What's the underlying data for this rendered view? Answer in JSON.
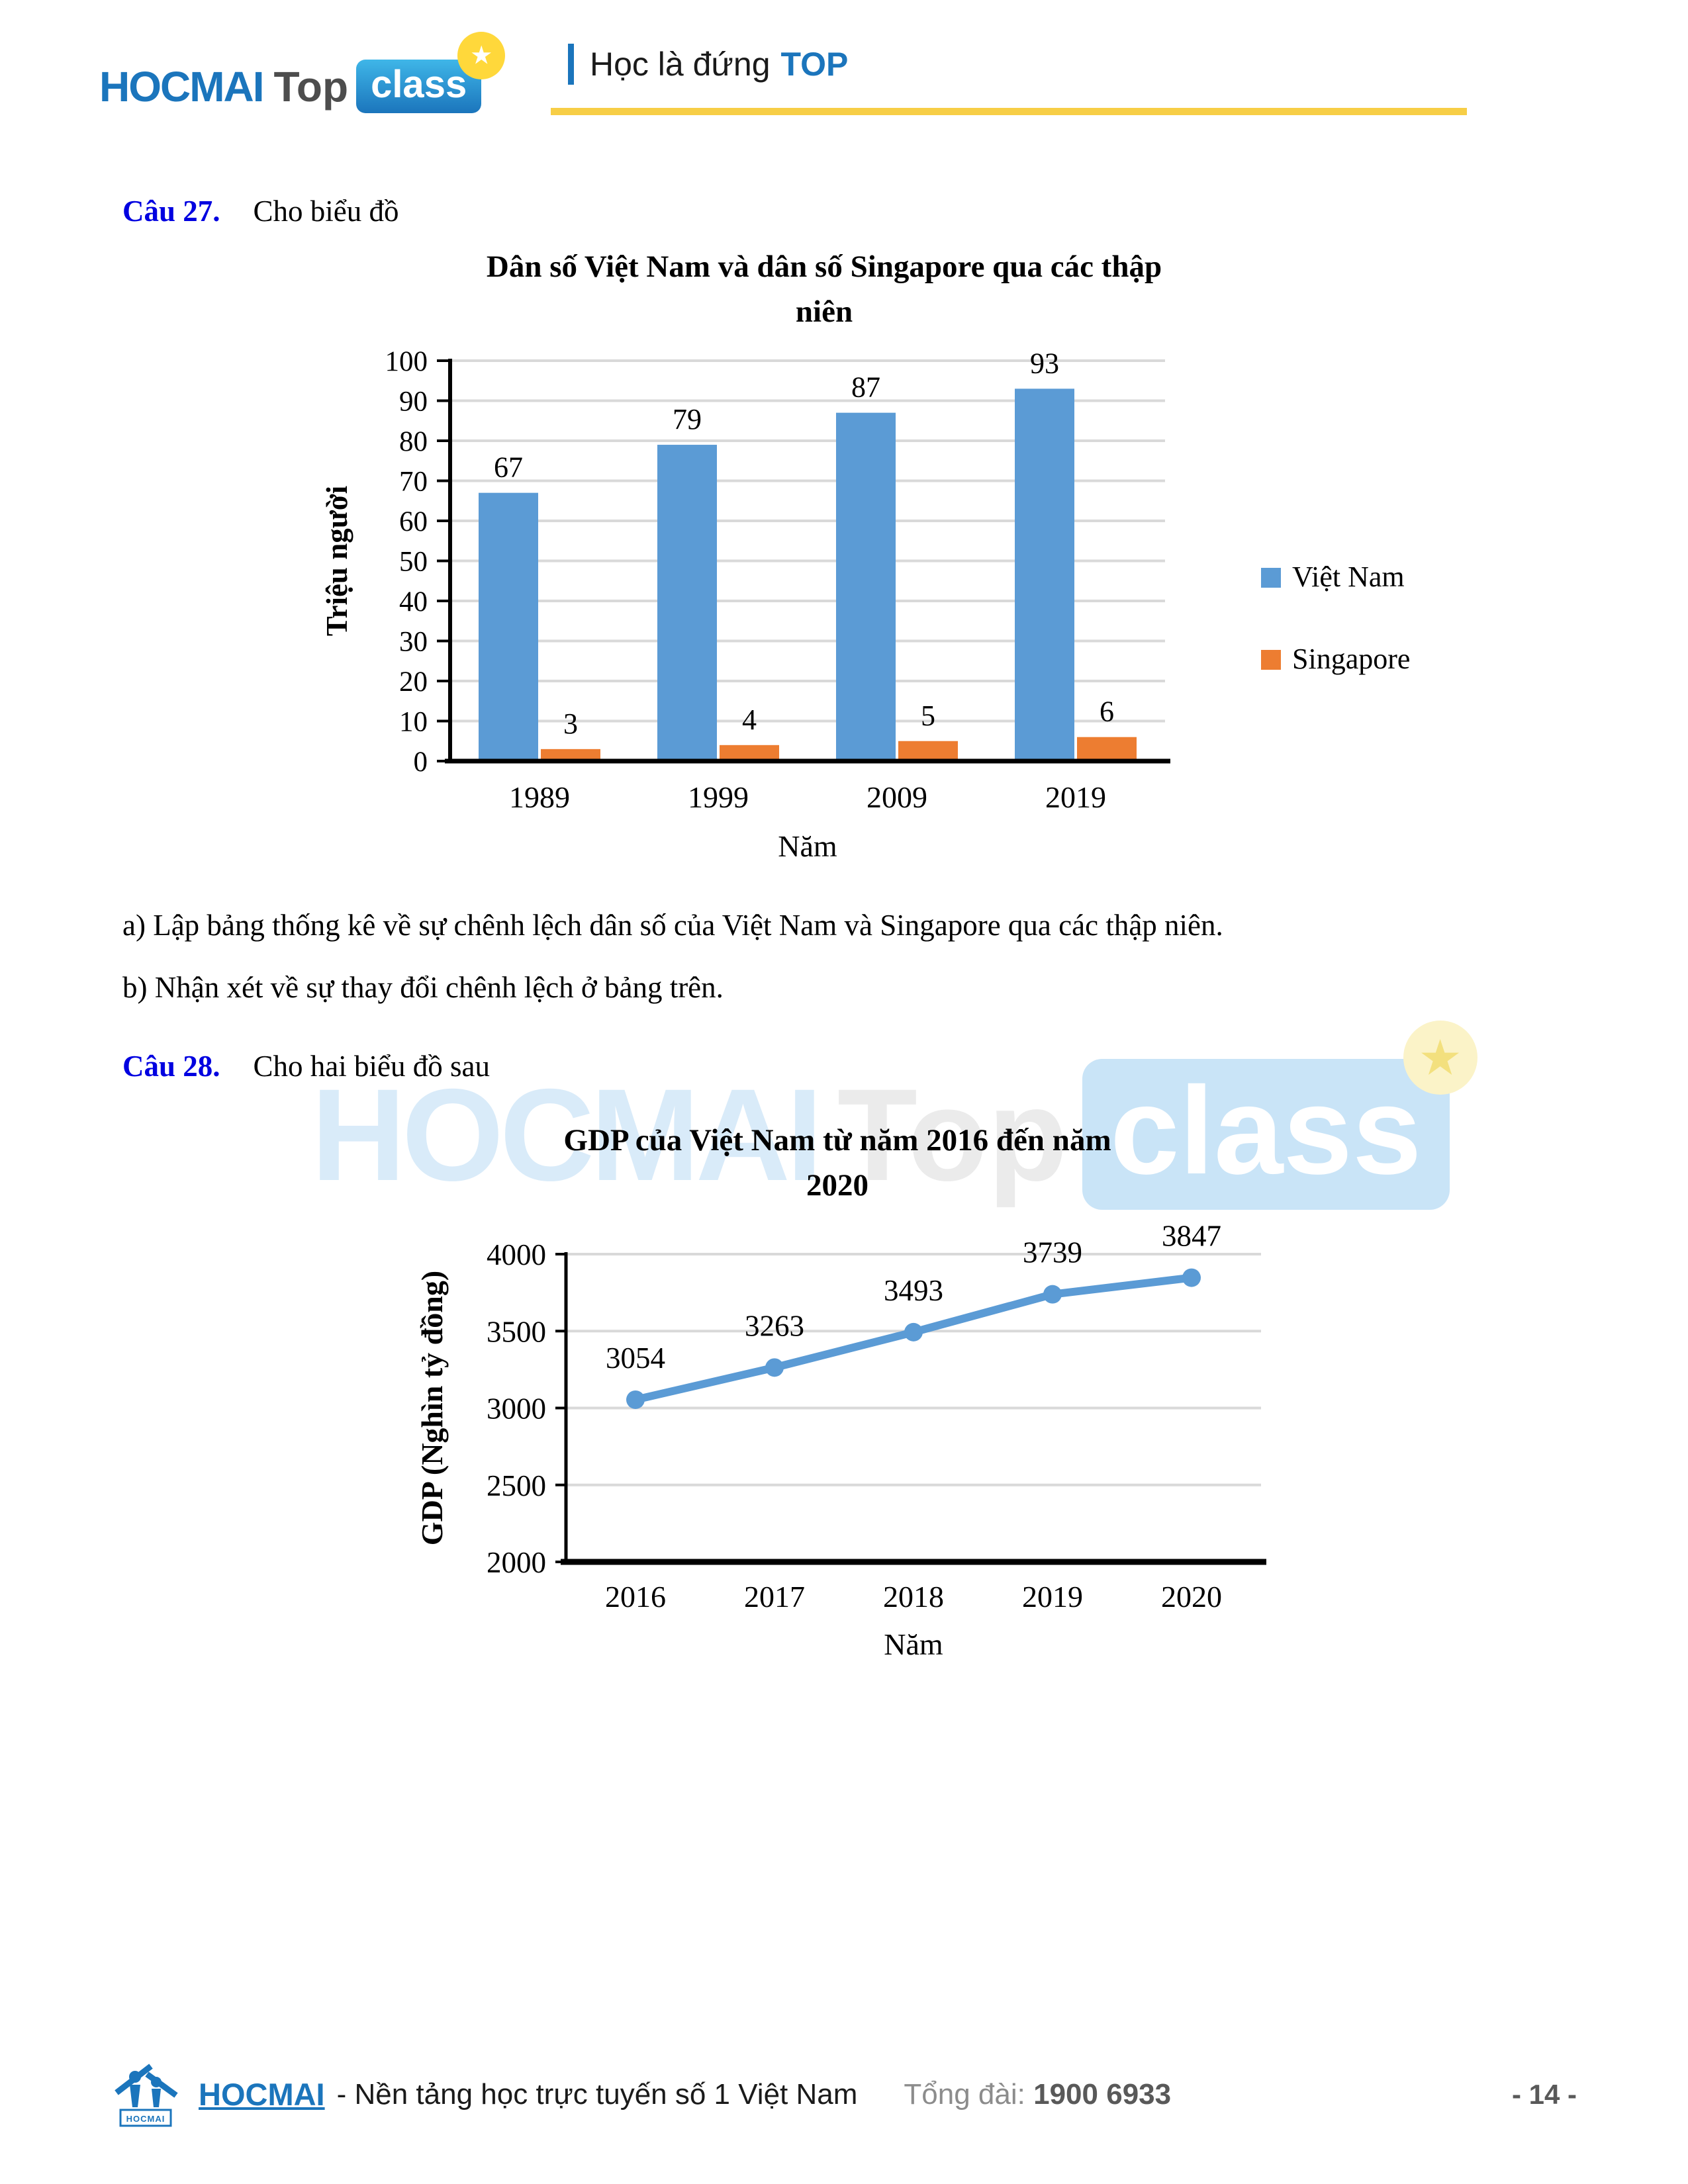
{
  "header": {
    "logo": {
      "hocmai": "HOCMAI",
      "top": "Top",
      "cls": "class",
      "badge": "★"
    },
    "tagline": {
      "text": "Học là đứng",
      "top": "TOP"
    }
  },
  "questions": {
    "q27_label": "Câu 27.",
    "q27_text": "Cho biểu đồ",
    "task_a": "a) Lập bảng thống kê về sự chênh lệch dân số của Việt Nam và Singapore qua các thập niên.",
    "task_b": "b) Nhận xét về sự thay đổi chênh lệch ở bảng trên.",
    "q28_label": "Câu 28.",
    "q28_text": "Cho hai biểu đồ sau"
  },
  "watermark": {
    "hocmai": "HOCMAI",
    "top": "Top",
    "cls": "class",
    "badge": "★"
  },
  "footer": {
    "logo_caption": "HOCMAI",
    "brand": "HOCMAI",
    "brand_sub": "- Nền tảng học trực tuyến số 1 Việt Nam",
    "hotline_label": "Tổng đài:",
    "hotline_number": "1900 6933",
    "page_number": "- 14 -"
  },
  "colors": {
    "brand_blue": "#1B75BC",
    "accent_yellow": "#F7CE46",
    "question_blue": "#0000E0",
    "bar_blue": "#5B9BD5",
    "bar_orange": "#ED7D31",
    "grid_gray": "#D9D9D9"
  },
  "chart_data": [
    {
      "type": "bar",
      "title": "Dân số Việt Nam và dân số Singapore qua các thập niên",
      "title_lines": [
        "Dân số Việt Nam và dân số Singapore qua các thập",
        "niên"
      ],
      "categories": [
        "1989",
        "1999",
        "2009",
        "2019"
      ],
      "series": [
        {
          "name": "Việt Nam",
          "color": "#5B9BD5",
          "values": [
            67,
            79,
            87,
            93
          ]
        },
        {
          "name": "Singapore",
          "color": "#ED7D31",
          "values": [
            3,
            4,
            5,
            6
          ]
        }
      ],
      "ylabel": "Triệu người",
      "xlabel": "Năm",
      "ylim": [
        0,
        100
      ],
      "yticks": [
        0,
        10,
        20,
        30,
        40,
        50,
        60,
        70,
        80,
        90,
        100
      ],
      "grid": true,
      "legend_position": "right"
    },
    {
      "type": "line",
      "title": "GDP của Việt Nam từ năm 2016 đến năm 2020",
      "title_lines": [
        "GDP của Việt Nam từ năm 2016 đến năm",
        "2020"
      ],
      "x": [
        "2016",
        "2017",
        "2018",
        "2019",
        "2020"
      ],
      "values": [
        3054,
        3263,
        3493,
        3739,
        3847
      ],
      "ylabel": "GDP (Nghìn tỷ đồng)",
      "xlabel": "Năm",
      "ylim": [
        2000,
        4000
      ],
      "yticks": [
        2000,
        2500,
        3000,
        3500,
        4000
      ],
      "color": "#5B9BD5",
      "marker": "circle",
      "grid": true
    }
  ]
}
